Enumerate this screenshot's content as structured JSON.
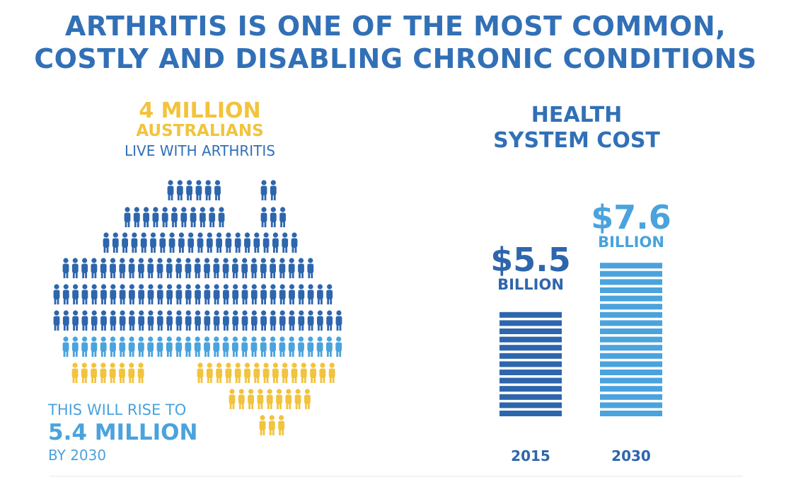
{
  "title": {
    "line1": "ARTHRITIS IS ONE OF THE MOST COMMON,",
    "line2": "COSTLY AND DISABLING CHRONIC CONDITIONS"
  },
  "prevalence": {
    "headline": "4 MILLION",
    "subhead": "AUSTRALIANS",
    "caption": "LIVE WITH ARTHRITIS",
    "rise_prefix": "THIS WILL RISE TO",
    "rise_value": "5.4 MILLION",
    "rise_suffix": "BY 2030"
  },
  "cost": {
    "title_line1": "HEALTH",
    "title_line2": "SYSTEM COST"
  },
  "colors": {
    "dark_blue": "#2e66ad",
    "light_blue": "#4aa3dd",
    "yellow": "#f2c33c"
  },
  "chart_data": [
    {
      "type": "bar",
      "title": "HEALTH SYSTEM COST",
      "categories": [
        "2015",
        "2030"
      ],
      "values": [
        5.5,
        7.6
      ],
      "value_labels": [
        "$5.5",
        "$7.6"
      ],
      "unit_label": "BILLION",
      "bar_colors": [
        "#2e66ad",
        "#4aa3dd"
      ]
    }
  ]
}
